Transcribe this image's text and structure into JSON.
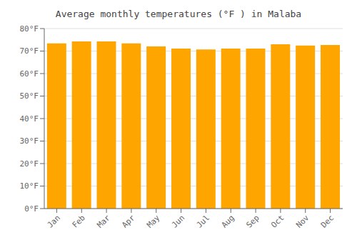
{
  "chart_data": {
    "type": "bar",
    "title": "Average monthly temperatures (°F ) in Malaba",
    "categories": [
      "Jan",
      "Feb",
      "Mar",
      "Apr",
      "May",
      "Jun",
      "Jul",
      "Aug",
      "Sep",
      "Oct",
      "Nov",
      "Dec"
    ],
    "values": [
      73.4,
      74.3,
      74.3,
      73.4,
      72.1,
      71.1,
      70.7,
      71.1,
      71.1,
      73.0,
      72.5,
      72.7
    ],
    "color": "#FFA500",
    "ylim": [
      0,
      80
    ],
    "yticks": [
      {
        "value": 0,
        "label": "0°F"
      },
      {
        "value": 10,
        "label": "10°F"
      },
      {
        "value": 20,
        "label": "20°F"
      },
      {
        "value": 30,
        "label": "30°F"
      },
      {
        "value": 40,
        "label": "40°F"
      },
      {
        "value": 50,
        "label": "50°F"
      },
      {
        "value": 60,
        "label": "60°F"
      },
      {
        "value": 70,
        "label": "70°F"
      },
      {
        "value": 80,
        "label": "80°F"
      }
    ],
    "grid": true
  }
}
